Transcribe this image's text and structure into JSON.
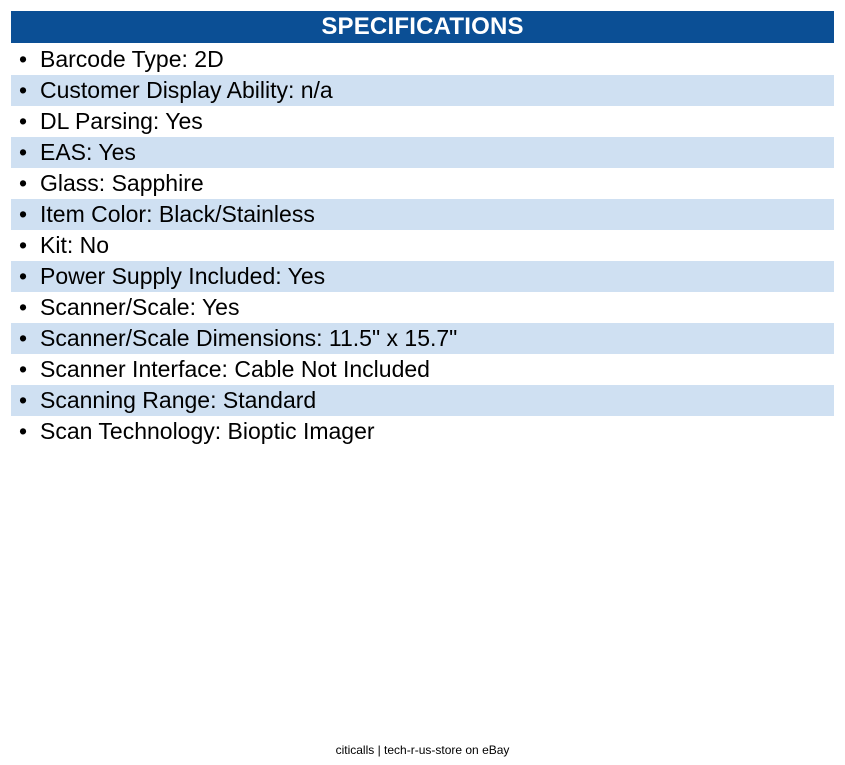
{
  "header": {
    "title": "SPECIFICATIONS",
    "background_color": "#0b4f95",
    "text_color": "#ffffff"
  },
  "specs": [
    {
      "bullet": "•",
      "text": "Barcode Type: 2D"
    },
    {
      "bullet": "•",
      "text": "Customer Display Ability: n/a"
    },
    {
      "bullet": "•",
      "text": "DL Parsing: Yes"
    },
    {
      "bullet": "•",
      "text": "EAS: Yes"
    },
    {
      "bullet": "•",
      "text": "Glass: Sapphire"
    },
    {
      "bullet": "•",
      "text": "Item Color: Black/Stainless"
    },
    {
      "bullet": "•",
      "text": "Kit: No"
    },
    {
      "bullet": "•",
      "text": "Power Supply Included: Yes"
    },
    {
      "bullet": "•",
      "text": "Scanner/Scale: Yes"
    },
    {
      "bullet": "•",
      "text": "Scanner/Scale Dimensions: 11.5\" x 15.7\""
    },
    {
      "bullet": "•",
      "text": "Scanner Interface: Cable Not Included"
    },
    {
      "bullet": "•",
      "text": "Scanning Range: Standard"
    },
    {
      "bullet": "•",
      "text": "Scan Technology: Bioptic Imager"
    }
  ],
  "row_shade_color": "#cfe0f2",
  "footer": {
    "text": "citicalls | tech-r-us-store on eBay"
  }
}
